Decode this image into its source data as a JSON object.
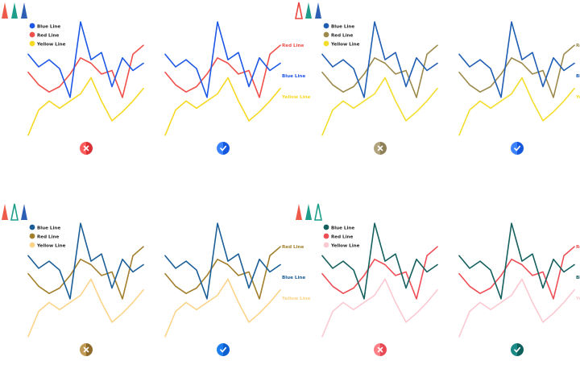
{
  "labels": {
    "blue": "Blue Line",
    "red": "Red Line",
    "yellow": "Yellow Line"
  },
  "chart_data": {
    "type": "line",
    "x": [
      0,
      1,
      2,
      3,
      4,
      5,
      6,
      7,
      8,
      9,
      10,
      11
    ],
    "series": [
      {
        "key": "blue",
        "name": "Blue Line",
        "values": [
          62,
          48,
          56,
          46,
          14,
          98,
          56,
          64,
          26,
          58,
          44,
          52
        ]
      },
      {
        "key": "red",
        "name": "Red Line",
        "values": [
          42,
          28,
          20,
          26,
          40,
          58,
          52,
          40,
          44,
          14,
          62,
          72
        ]
      },
      {
        "key": "yellow",
        "name": "Yellow Line",
        "values": [
          -28,
          0,
          10,
          2,
          10,
          18,
          36,
          10,
          -12,
          -2,
          10,
          24
        ]
      }
    ],
    "ylim": [
      -30,
      100
    ]
  },
  "palettes": [
    {
      "blue": "#1d57e6",
      "red": "#f0504a",
      "yellow": "#f7d923"
    },
    {
      "blue": "#1f5db3",
      "red": "#9c8a4c",
      "yellow": "#f3de2c"
    },
    {
      "blue": "#1b5e97",
      "red": "#a27f2c",
      "yellow": "#fbd48a"
    },
    {
      "blue": "#155f5e",
      "red": "#ee4e55",
      "yellow": "#fbc9d2"
    }
  ],
  "badges": [
    {
      "type": "cross",
      "left": "#ff5c5c",
      "right": "#d93236"
    },
    {
      "type": "check",
      "left": "#3b82ff",
      "right": "#1558dd"
    },
    {
      "type": "cross",
      "left": "#b0a27b",
      "right": "#8f8058"
    },
    {
      "type": "check",
      "left": "#3b82ff",
      "right": "#1558dd"
    },
    {
      "type": "cross",
      "left": "#c19a55",
      "right": "#8e6a2b"
    },
    {
      "type": "check",
      "left": "#1e7ff0",
      "right": "#0b5fcf"
    },
    {
      "type": "cross",
      "left": "#ff7f86",
      "right": "#e84a55"
    },
    {
      "type": "check",
      "left": "#1a8a86",
      "right": "#0e605c"
    }
  ],
  "header_icons": [
    {
      "cells": [
        [
          "solid",
          "#ef5b4a"
        ],
        [
          "solid",
          "#1e9e8a"
        ],
        [
          "solid",
          "#2d5fb4"
        ]
      ]
    },
    {
      "cells": [
        [
          "outline",
          "#e8463f"
        ],
        [
          "solid",
          "#1e9e8a"
        ],
        [
          "solid",
          "#2d5fb4"
        ]
      ]
    },
    {
      "cells": [
        [
          "solid",
          "#ef5b4a"
        ],
        [
          "outline",
          "#1e9e8a"
        ],
        [
          "solid",
          "#2d5fb4"
        ]
      ]
    },
    {
      "cells": [
        [
          "solid",
          "#ef5b4a"
        ],
        [
          "solid",
          "#1e9e8a"
        ],
        [
          "outline",
          "#1e9e8a"
        ]
      ]
    }
  ]
}
